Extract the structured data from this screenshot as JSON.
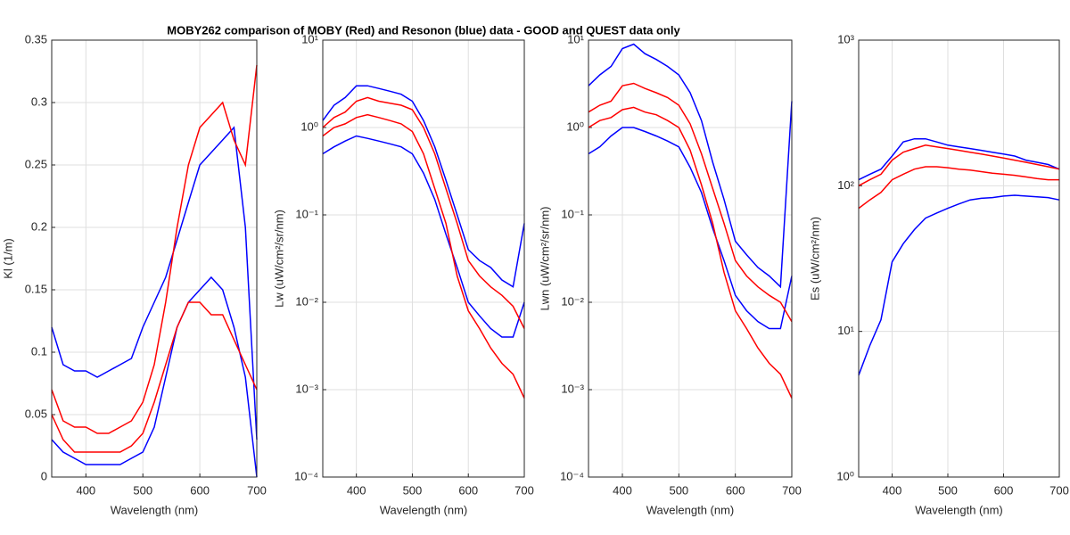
{
  "chart_data": [
    {
      "type": "line",
      "title": "MOBY262 comparison of MOBY (Red) and Resonon (blue) data - GOOD and QUEST data only",
      "xlabel": "Wavelength (nm)",
      "ylabel": "Kl (1/m)",
      "grid": true,
      "xlim": [
        340,
        700
      ],
      "xticks": [
        400,
        500,
        600,
        700
      ],
      "ylim": [
        0,
        0.35
      ],
      "yticks": [
        0,
        0.05,
        0.1,
        0.15,
        0.2,
        0.25,
        0.3,
        0.35
      ],
      "x": [
        340,
        360,
        380,
        400,
        420,
        440,
        460,
        480,
        500,
        520,
        540,
        560,
        580,
        600,
        620,
        640,
        660,
        680,
        700
      ],
      "series": [
        {
          "color": "#0000ff",
          "values": [
            0.12,
            0.09,
            0.085,
            0.085,
            0.08,
            0.085,
            0.09,
            0.095,
            0.12,
            0.14,
            0.16,
            0.19,
            0.22,
            0.25,
            0.26,
            0.27,
            0.28,
            0.2,
            0.03
          ]
        },
        {
          "color": "#0000ff",
          "values": [
            0.03,
            0.02,
            0.015,
            0.01,
            0.01,
            0.01,
            0.01,
            0.015,
            0.02,
            0.04,
            0.08,
            0.12,
            0.14,
            0.15,
            0.16,
            0.15,
            0.12,
            0.08,
            0
          ]
        },
        {
          "color": "#ff0000",
          "values": [
            0.07,
            0.045,
            0.04,
            0.04,
            0.035,
            0.035,
            0.04,
            0.045,
            0.06,
            0.09,
            0.14,
            0.2,
            0.25,
            0.28,
            0.29,
            0.3,
            0.27,
            0.25,
            0.33
          ]
        },
        {
          "color": "#ff0000",
          "values": [
            0.05,
            0.03,
            0.02,
            0.02,
            0.02,
            0.02,
            0.02,
            0.025,
            0.035,
            0.06,
            0.09,
            0.12,
            0.14,
            0.14,
            0.13,
            0.13,
            0.11,
            0.09,
            0.07
          ]
        }
      ]
    },
    {
      "type": "line",
      "xlabel": "Wavelength (nm)",
      "ylabel": "Lw (uW/cm²/sr/nm)",
      "grid": true,
      "yscale": "log",
      "xlim": [
        340,
        700
      ],
      "xticks": [
        400,
        500,
        600,
        700
      ],
      "ylim": [
        0.0001,
        10
      ],
      "yticks": [
        {
          "value": 0.0001,
          "label": "10⁻⁴"
        },
        {
          "value": 0.001,
          "label": "10⁻³"
        },
        {
          "value": 0.01,
          "label": "10⁻²"
        },
        {
          "value": 0.1,
          "label": "10⁻¹"
        },
        {
          "value": 1,
          "label": "10⁰"
        },
        {
          "value": 10,
          "label": "10¹"
        }
      ],
      "x": [
        340,
        360,
        380,
        400,
        420,
        440,
        460,
        480,
        500,
        520,
        540,
        560,
        580,
        600,
        620,
        640,
        660,
        680,
        700
      ],
      "series": [
        {
          "color": "#0000ff",
          "values": [
            1.2,
            1.8,
            2.2,
            3.0,
            3.0,
            2.8,
            2.6,
            2.4,
            2.0,
            1.2,
            0.6,
            0.25,
            0.1,
            0.04,
            0.03,
            0.025,
            0.018,
            0.015,
            0.08
          ]
        },
        {
          "color": "#0000ff",
          "values": [
            0.5,
            0.6,
            0.7,
            0.8,
            0.75,
            0.7,
            0.65,
            0.6,
            0.5,
            0.3,
            0.15,
            0.06,
            0.025,
            0.01,
            0.007,
            0.005,
            0.004,
            0.004,
            0.01
          ]
        },
        {
          "color": "#ff0000",
          "values": [
            1.0,
            1.3,
            1.5,
            2.0,
            2.2,
            2.0,
            1.9,
            1.8,
            1.6,
            1.0,
            0.5,
            0.2,
            0.08,
            0.03,
            0.02,
            0.015,
            0.012,
            0.009,
            0.005
          ]
        },
        {
          "color": "#ff0000",
          "values": [
            0.8,
            1.0,
            1.1,
            1.3,
            1.4,
            1.3,
            1.2,
            1.1,
            0.9,
            0.5,
            0.2,
            0.08,
            0.02,
            0.008,
            0.005,
            0.003,
            0.002,
            0.0015,
            0.0008
          ]
        }
      ]
    },
    {
      "type": "line",
      "xlabel": "Wavelength (nm)",
      "ylabel": "Lwn (uW/cm²/sr/nm)",
      "grid": true,
      "yscale": "log",
      "xlim": [
        340,
        700
      ],
      "xticks": [
        400,
        500,
        600,
        700
      ],
      "ylim": [
        0.0001,
        10
      ],
      "yticks": [
        {
          "value": 0.0001,
          "label": "10⁻⁴"
        },
        {
          "value": 0.001,
          "label": "10⁻³"
        },
        {
          "value": 0.01,
          "label": "10⁻²"
        },
        {
          "value": 0.1,
          "label": "10⁻¹"
        },
        {
          "value": 1,
          "label": "10⁰"
        },
        {
          "value": 10,
          "label": "10¹"
        }
      ],
      "x": [
        340,
        360,
        380,
        400,
        420,
        440,
        460,
        480,
        500,
        520,
        540,
        560,
        580,
        600,
        620,
        640,
        660,
        680,
        700
      ],
      "series": [
        {
          "color": "#0000ff",
          "values": [
            3,
            4,
            5,
            8,
            9,
            7,
            6,
            5,
            4,
            2.5,
            1.2,
            0.4,
            0.15,
            0.05,
            0.035,
            0.025,
            0.02,
            0.015,
            2.0
          ]
        },
        {
          "color": "#0000ff",
          "values": [
            0.5,
            0.6,
            0.8,
            1.0,
            1.0,
            0.9,
            0.8,
            0.7,
            0.6,
            0.35,
            0.18,
            0.07,
            0.03,
            0.012,
            0.008,
            0.006,
            0.005,
            0.005,
            0.02
          ]
        },
        {
          "color": "#ff0000",
          "values": [
            1.5,
            1.8,
            2.0,
            3.0,
            3.2,
            2.8,
            2.5,
            2.2,
            1.8,
            1.1,
            0.5,
            0.2,
            0.08,
            0.03,
            0.02,
            0.015,
            0.012,
            0.01,
            0.006
          ]
        },
        {
          "color": "#ff0000",
          "values": [
            1.0,
            1.2,
            1.3,
            1.6,
            1.7,
            1.5,
            1.4,
            1.2,
            1.0,
            0.55,
            0.22,
            0.08,
            0.022,
            0.008,
            0.005,
            0.003,
            0.002,
            0.0015,
            0.0008
          ]
        }
      ]
    },
    {
      "type": "line",
      "xlabel": "Wavelength (nm)",
      "ylabel": "Es (uW/cm²/nm)",
      "grid": true,
      "yscale": "log",
      "xlim": [
        340,
        700
      ],
      "xticks": [
        400,
        500,
        600,
        700
      ],
      "ylim": [
        1,
        1000
      ],
      "yticks": [
        {
          "value": 1,
          "label": "10⁰"
        },
        {
          "value": 10,
          "label": "10¹"
        },
        {
          "value": 100,
          "label": "10²"
        },
        {
          "value": 1000,
          "label": "10³"
        }
      ],
      "x": [
        340,
        360,
        380,
        400,
        420,
        440,
        460,
        480,
        500,
        520,
        540,
        560,
        580,
        600,
        620,
        640,
        660,
        680,
        700
      ],
      "series": [
        {
          "color": "#0000ff",
          "values": [
            110,
            120,
            130,
            160,
            200,
            210,
            210,
            200,
            190,
            185,
            180,
            175,
            170,
            165,
            160,
            150,
            145,
            140,
            130
          ]
        },
        {
          "color": "#0000ff",
          "values": [
            5,
            8,
            12,
            30,
            40,
            50,
            60,
            65,
            70,
            75,
            80,
            82,
            83,
            85,
            86,
            85,
            84,
            83,
            80
          ]
        },
        {
          "color": "#ff0000",
          "values": [
            100,
            110,
            120,
            150,
            170,
            180,
            190,
            185,
            180,
            175,
            170,
            165,
            160,
            155,
            150,
            145,
            140,
            135,
            130
          ]
        },
        {
          "color": "#ff0000",
          "values": [
            70,
            80,
            90,
            110,
            120,
            130,
            135,
            135,
            133,
            130,
            128,
            125,
            122,
            120,
            118,
            115,
            112,
            110,
            110
          ]
        }
      ]
    }
  ]
}
